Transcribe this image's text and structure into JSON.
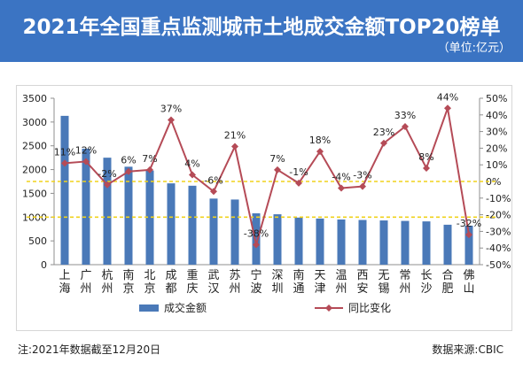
{
  "header": {
    "title": "2021年全国重点监测城市土地成交金额TOP20榜单",
    "unit": "（单位:亿元）"
  },
  "colors": {
    "header_bg": "#3b74c3",
    "bar": "#4a79b8",
    "line": "#b54b57",
    "reference_line": "#f0d21c",
    "axis": "#8f8f8f"
  },
  "chart_data": {
    "type": "bar",
    "categories": [
      "上海",
      "广州",
      "杭州",
      "南京",
      "北京",
      "成都",
      "重庆",
      "武汉",
      "苏州",
      "宁波",
      "深圳",
      "南通",
      "天津",
      "温州",
      "西安",
      "无锡",
      "常州",
      "长沙",
      "合肥",
      "佛山"
    ],
    "series": [
      {
        "name": "成交金额",
        "type": "bar",
        "axis": "left",
        "values": [
          3130,
          2440,
          2250,
          2060,
          1980,
          1710,
          1660,
          1390,
          1370,
          1080,
          1060,
          990,
          970,
          950,
          940,
          930,
          920,
          910,
          840,
          820
        ]
      },
      {
        "name": "同比变化",
        "type": "line",
        "axis": "right",
        "marker": "diamond",
        "values": [
          11,
          12,
          -2,
          6,
          7,
          37,
          4,
          -6,
          21,
          -38,
          7,
          -1,
          18,
          -4,
          -3,
          23,
          33,
          8,
          44,
          -32
        ],
        "labels": [
          "11%",
          "12%",
          "-2%",
          "6%",
          "7%",
          "37%",
          "4%",
          "-6%",
          "21%",
          "-38%",
          "7%",
          "-1%",
          "18%",
          "-4%",
          "-3%",
          "23%",
          "33%",
          "8%",
          "44%",
          "-32%"
        ]
      }
    ],
    "y_left": {
      "range": [
        0,
        3500
      ],
      "ticks": [
        0,
        500,
        1000,
        1500,
        2000,
        2500,
        3000,
        3500
      ],
      "tick_labels": [
        "0",
        "500",
        "1000",
        "1500",
        "2000",
        "2500",
        "3000",
        "3500"
      ]
    },
    "y_right": {
      "range": [
        -50,
        50
      ],
      "ticks": [
        -50,
        -40,
        -30,
        -20,
        -10,
        0,
        10,
        20,
        30,
        40,
        50
      ],
      "tick_labels": [
        "-50%",
        "-40%",
        "-30%",
        "-20%",
        "-10%",
        "0%",
        "10%",
        "20%",
        "30%",
        "40%",
        "50%"
      ]
    },
    "reference_lines": [
      {
        "axis": "right",
        "value": 0,
        "style": "dashed"
      },
      {
        "axis": "left",
        "value": 1000,
        "style": "dashed"
      }
    ],
    "grid": false,
    "legend": {
      "position": "bottom"
    }
  },
  "footer": {
    "note": "注:2021年数据截至12月20日",
    "source": "数据来源:CBIC"
  }
}
